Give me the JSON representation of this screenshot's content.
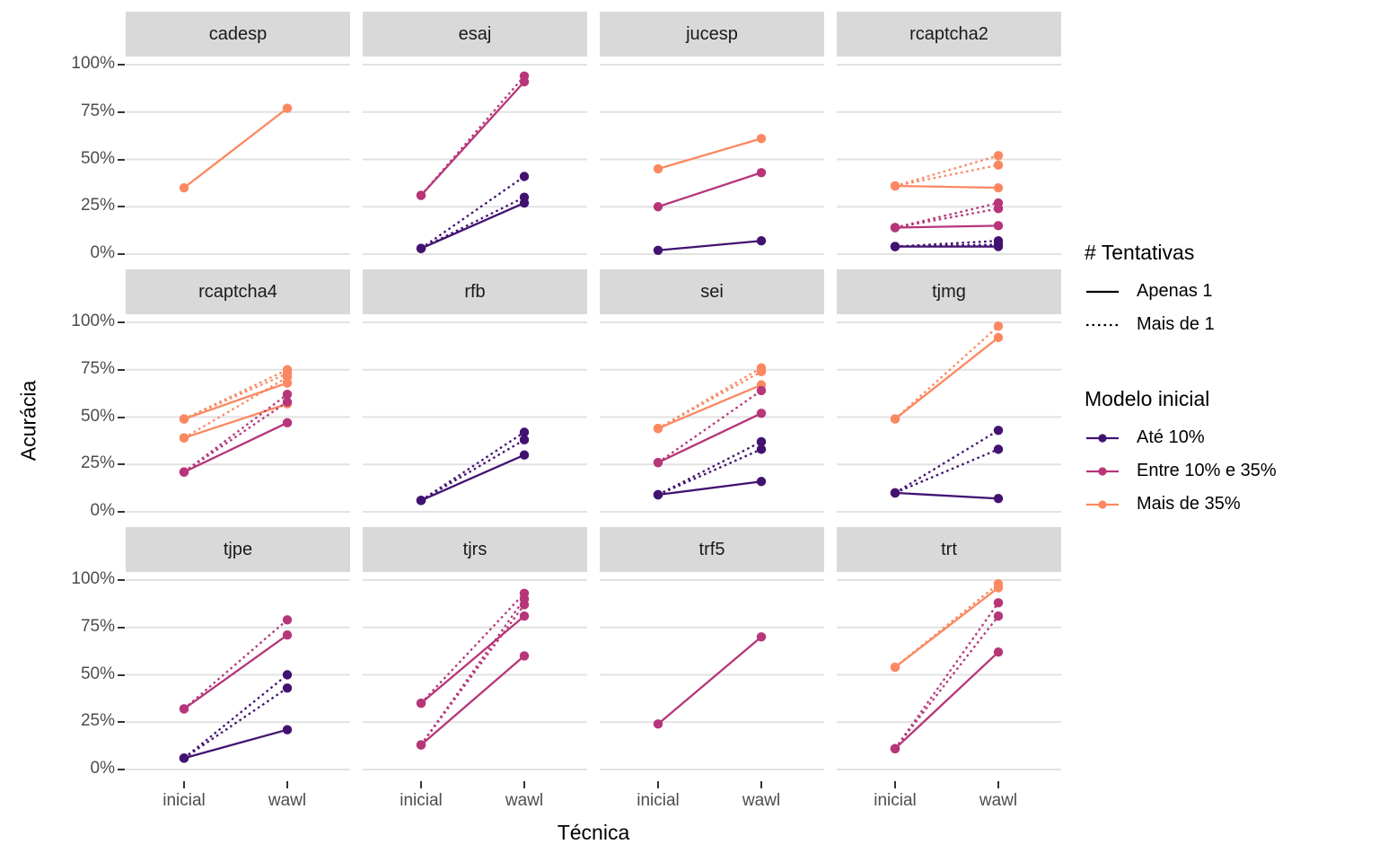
{
  "axes": {
    "y_title": "Acurácia",
    "x_title": "Técnica",
    "y_ticks": [
      "100%",
      "75%",
      "50%",
      "25%",
      "0%"
    ],
    "y_tick_values": [
      100,
      75,
      50,
      25,
      0
    ],
    "x_ticks": [
      "inicial",
      "wawl"
    ]
  },
  "legend": {
    "tentativas": {
      "title": "# Tentativas",
      "items": [
        {
          "label": "Apenas 1",
          "style": "solid"
        },
        {
          "label": "Mais de 1",
          "style": "dotted"
        }
      ]
    },
    "modelo": {
      "title": "Modelo inicial",
      "items": [
        {
          "label": "Até 10%",
          "color": "#421271"
        },
        {
          "label": "Entre 10% e 35%",
          "color": "#B63679"
        },
        {
          "label": "Mais de 35%",
          "color": "#FB8861"
        }
      ]
    }
  },
  "colors": {
    "strip_bg": "#d9d9d9",
    "gridline": "#e2e2e2",
    "tick_text": "#4d4d4d"
  },
  "chart_data": {
    "type": "line",
    "title": "",
    "xlabel": "Técnica",
    "ylabel": "Acurácia",
    "x_categories": [
      "inicial",
      "wawl"
    ],
    "ylim": [
      0,
      100
    ],
    "grid": true,
    "legend_position": "right",
    "facets": [
      {
        "name": "cadesp",
        "series": [
          {
            "modelo": "Mais de 35%",
            "tentativas": "Apenas 1",
            "inicial": 35,
            "wawl": 77
          }
        ]
      },
      {
        "name": "esaj",
        "series": [
          {
            "modelo": "Entre 10% e 35%",
            "tentativas": "Mais de 1",
            "inicial": 31,
            "wawl": 94
          },
          {
            "modelo": "Entre 10% e 35%",
            "tentativas": "Apenas 1",
            "inicial": 31,
            "wawl": 91
          },
          {
            "modelo": "Até 10%",
            "tentativas": "Mais de 1",
            "inicial": 3,
            "wawl": 41
          },
          {
            "modelo": "Até 10%",
            "tentativas": "Mais de 1",
            "inicial": 3,
            "wawl": 30
          },
          {
            "modelo": "Até 10%",
            "tentativas": "Apenas 1",
            "inicial": 3,
            "wawl": 27
          }
        ]
      },
      {
        "name": "jucesp",
        "series": [
          {
            "modelo": "Mais de 35%",
            "tentativas": "Apenas 1",
            "inicial": 45,
            "wawl": 61
          },
          {
            "modelo": "Entre 10% e 35%",
            "tentativas": "Apenas 1",
            "inicial": 25,
            "wawl": 43
          },
          {
            "modelo": "Até 10%",
            "tentativas": "Apenas 1",
            "inicial": 2,
            "wawl": 7
          }
        ]
      },
      {
        "name": "rcaptcha2",
        "series": [
          {
            "modelo": "Mais de 35%",
            "tentativas": "Mais de 1",
            "inicial": 36,
            "wawl": 52
          },
          {
            "modelo": "Mais de 35%",
            "tentativas": "Mais de 1",
            "inicial": 36,
            "wawl": 47
          },
          {
            "modelo": "Mais de 35%",
            "tentativas": "Apenas 1",
            "inicial": 36,
            "wawl": 35
          },
          {
            "modelo": "Entre 10% e 35%",
            "tentativas": "Mais de 1",
            "inicial": 14,
            "wawl": 27
          },
          {
            "modelo": "Entre 10% e 35%",
            "tentativas": "Mais de 1",
            "inicial": 14,
            "wawl": 24
          },
          {
            "modelo": "Entre 10% e 35%",
            "tentativas": "Apenas 1",
            "inicial": 14,
            "wawl": 15
          },
          {
            "modelo": "Até 10%",
            "tentativas": "Mais de 1",
            "inicial": 4,
            "wawl": 7
          },
          {
            "modelo": "Até 10%",
            "tentativas": "Mais de 1",
            "inicial": 4,
            "wawl": 5
          },
          {
            "modelo": "Até 10%",
            "tentativas": "Apenas 1",
            "inicial": 4,
            "wawl": 4
          }
        ]
      },
      {
        "name": "rcaptcha4",
        "series": [
          {
            "modelo": "Mais de 35%",
            "tentativas": "Mais de 1",
            "inicial": 49,
            "wawl": 75
          },
          {
            "modelo": "Mais de 35%",
            "tentativas": "Mais de 1",
            "inicial": 49,
            "wawl": 73
          },
          {
            "modelo": "Mais de 35%",
            "tentativas": "Apenas 1",
            "inicial": 49,
            "wawl": 68
          },
          {
            "modelo": "Mais de 35%",
            "tentativas": "Mais de 1",
            "inicial": 39,
            "wawl": 71
          },
          {
            "modelo": "Mais de 35%",
            "tentativas": "Apenas 1",
            "inicial": 39,
            "wawl": 57
          },
          {
            "modelo": "Entre 10% e 35%",
            "tentativas": "Mais de 1",
            "inicial": 21,
            "wawl": 62
          },
          {
            "modelo": "Entre 10% e 35%",
            "tentativas": "Mais de 1",
            "inicial": 21,
            "wawl": 58
          },
          {
            "modelo": "Entre 10% e 35%",
            "tentativas": "Apenas 1",
            "inicial": 21,
            "wawl": 47
          }
        ]
      },
      {
        "name": "rfb",
        "series": [
          {
            "modelo": "Até 10%",
            "tentativas": "Mais de 1",
            "inicial": 6,
            "wawl": 42
          },
          {
            "modelo": "Até 10%",
            "tentativas": "Mais de 1",
            "inicial": 6,
            "wawl": 38
          },
          {
            "modelo": "Até 10%",
            "tentativas": "Apenas 1",
            "inicial": 6,
            "wawl": 30
          }
        ]
      },
      {
        "name": "sei",
        "series": [
          {
            "modelo": "Mais de 35%",
            "tentativas": "Mais de 1",
            "inicial": 44,
            "wawl": 76
          },
          {
            "modelo": "Mais de 35%",
            "tentativas": "Mais de 1",
            "inicial": 44,
            "wawl": 74
          },
          {
            "modelo": "Mais de 35%",
            "tentativas": "Apenas 1",
            "inicial": 44,
            "wawl": 67
          },
          {
            "modelo": "Entre 10% e 35%",
            "tentativas": "Mais de 1",
            "inicial": 26,
            "wawl": 64
          },
          {
            "modelo": "Entre 10% e 35%",
            "tentativas": "Apenas 1",
            "inicial": 26,
            "wawl": 52
          },
          {
            "modelo": "Até 10%",
            "tentativas": "Mais de 1",
            "inicial": 9,
            "wawl": 37
          },
          {
            "modelo": "Até 10%",
            "tentativas": "Mais de 1",
            "inicial": 9,
            "wawl": 33
          },
          {
            "modelo": "Até 10%",
            "tentativas": "Apenas 1",
            "inicial": 9,
            "wawl": 16
          }
        ]
      },
      {
        "name": "tjmg",
        "series": [
          {
            "modelo": "Mais de 35%",
            "tentativas": "Mais de 1",
            "inicial": 49,
            "wawl": 98
          },
          {
            "modelo": "Mais de 35%",
            "tentativas": "Apenas 1",
            "inicial": 49,
            "wawl": 92
          },
          {
            "modelo": "Até 10%",
            "tentativas": "Mais de 1",
            "inicial": 10,
            "wawl": 43
          },
          {
            "modelo": "Até 10%",
            "tentativas": "Mais de 1",
            "inicial": 10,
            "wawl": 33
          },
          {
            "modelo": "Até 10%",
            "tentativas": "Apenas 1",
            "inicial": 10,
            "wawl": 7
          }
        ]
      },
      {
        "name": "tjpe",
        "series": [
          {
            "modelo": "Entre 10% e 35%",
            "tentativas": "Mais de 1",
            "inicial": 32,
            "wawl": 79
          },
          {
            "modelo": "Entre 10% e 35%",
            "tentativas": "Apenas 1",
            "inicial": 32,
            "wawl": 71
          },
          {
            "modelo": "Até 10%",
            "tentativas": "Mais de 1",
            "inicial": 6,
            "wawl": 50
          },
          {
            "modelo": "Até 10%",
            "tentativas": "Mais de 1",
            "inicial": 6,
            "wawl": 43
          },
          {
            "modelo": "Até 10%",
            "tentativas": "Apenas 1",
            "inicial": 6,
            "wawl": 21
          }
        ]
      },
      {
        "name": "tjrs",
        "series": [
          {
            "modelo": "Entre 10% e 35%",
            "tentativas": "Mais de 1",
            "inicial": 35,
            "wawl": 93
          },
          {
            "modelo": "Entre 10% e 35%",
            "tentativas": "Apenas 1",
            "inicial": 35,
            "wawl": 81
          },
          {
            "modelo": "Entre 10% e 35%",
            "tentativas": "Mais de 1",
            "inicial": 13,
            "wawl": 90
          },
          {
            "modelo": "Entre 10% e 35%",
            "tentativas": "Mais de 1",
            "inicial": 13,
            "wawl": 87
          },
          {
            "modelo": "Entre 10% e 35%",
            "tentativas": "Apenas 1",
            "inicial": 13,
            "wawl": 60
          }
        ]
      },
      {
        "name": "trf5",
        "series": [
          {
            "modelo": "Entre 10% e 35%",
            "tentativas": "Apenas 1",
            "inicial": 24,
            "wawl": 70
          }
        ]
      },
      {
        "name": "trt",
        "series": [
          {
            "modelo": "Mais de 35%",
            "tentativas": "Mais de 1",
            "inicial": 54,
            "wawl": 98
          },
          {
            "modelo": "Mais de 35%",
            "tentativas": "Apenas 1",
            "inicial": 54,
            "wawl": 96
          },
          {
            "modelo": "Entre 10% e 35%",
            "tentativas": "Mais de 1",
            "inicial": 11,
            "wawl": 88
          },
          {
            "modelo": "Entre 10% e 35%",
            "tentativas": "Mais de 1",
            "inicial": 11,
            "wawl": 81
          },
          {
            "modelo": "Entre 10% e 35%",
            "tentativas": "Apenas 1",
            "inicial": 11,
            "wawl": 62
          }
        ]
      }
    ]
  }
}
